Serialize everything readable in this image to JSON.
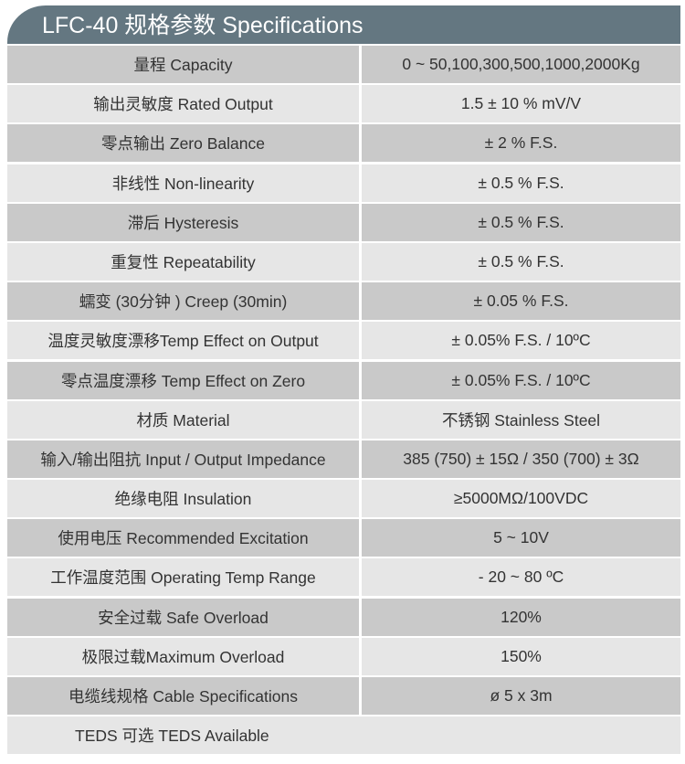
{
  "title": "LFC-40 规格参数 Specifications",
  "rows": [
    {
      "label": "量程 Capacity",
      "value": "0 ~ 50,100,300,500,1000,2000Kg"
    },
    {
      "label": "输出灵敏度 Rated Output",
      "value": "1.5 ± 10 % mV/V"
    },
    {
      "label": "零点输出  Zero Balance",
      "value": "± 2 % F.S."
    },
    {
      "label": "非线性 Non-linearity",
      "value": "± 0.5 % F.S."
    },
    {
      "label": "滞后 Hysteresis",
      "value": "± 0.5 % F.S."
    },
    {
      "label": "重复性 Repeatability",
      "value": "± 0.5 % F.S."
    },
    {
      "label": "蠕变 (30分钟 ) Creep (30min)",
      "value": "± 0.05 % F.S."
    },
    {
      "label": "温度灵敏度漂移Temp Effect on Output",
      "value": "± 0.05% F.S. / 10ºC"
    },
    {
      "label": "零点温度漂移 Temp Effect on Zero",
      "value": "± 0.05% F.S. / 10ºC"
    },
    {
      "label": "材质 Material",
      "value": "不锈钢 Stainless Steel"
    },
    {
      "label": "输入/输出阻抗 Input / Output Impedance",
      "value": "385 (750) ± 15Ω / 350 (700) ± 3Ω"
    },
    {
      "label": "绝缘电阻  Insulation",
      "value": "≥5000MΩ/100VDC"
    },
    {
      "label": "使用电压 Recommended Excitation",
      "value": "5 ~ 10V"
    },
    {
      "label": "工作温度范围 Operating Temp  Range",
      "value": "- 20 ~ 80 ºC"
    },
    {
      "label": "安全过载 Safe Overload",
      "value": "120%"
    },
    {
      "label": "极限过载Maximum Overload",
      "value": "150%"
    },
    {
      "label": "电缆线规格 Cable Specifications",
      "value": "ø 5 x 3m"
    },
    {
      "label": "TEDS 可选 TEDS Available"
    }
  ],
  "colors": {
    "header": "#647781",
    "row_dark": "#c9c9c9",
    "row_light": "#e6e6e6"
  }
}
